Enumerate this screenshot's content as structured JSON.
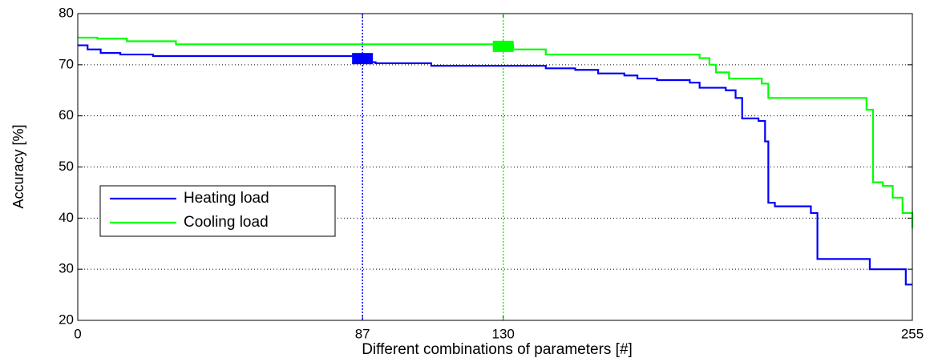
{
  "chart_data": {
    "type": "line",
    "x_label": "Different combinations of parameters [#]",
    "y_label": "Accuracy [%]",
    "xlim": [
      0,
      255
    ],
    "ylim": [
      20,
      80
    ],
    "xticks": [
      0,
      87,
      130,
      255
    ],
    "yticks": [
      20,
      30,
      40,
      50,
      60,
      70,
      80
    ],
    "grid": true,
    "legend": "middle-left",
    "series": [
      {
        "name": "Heating load",
        "color": "#0000ff",
        "x": [
          0,
          3,
          3,
          7,
          7,
          13,
          13,
          23,
          23,
          88,
          88,
          91,
          91,
          108,
          108,
          143,
          143,
          152,
          152,
          159,
          159,
          167,
          167,
          171,
          171,
          177,
          177,
          187,
          187,
          190,
          190,
          198,
          198,
          201,
          201,
          203,
          203,
          208,
          208,
          210,
          210,
          211,
          211,
          213,
          213,
          224,
          224,
          226,
          226,
          242,
          242,
          253,
          253,
          255
        ],
        "values": [
          73.8,
          73.8,
          73,
          73,
          72.3,
          72.3,
          72,
          72,
          71.7,
          71.7,
          70.5,
          70.5,
          70.3,
          70.3,
          69.8,
          69.8,
          69.3,
          69.3,
          69,
          69,
          68.3,
          68.3,
          67.9,
          67.9,
          67.3,
          67.3,
          67,
          67,
          66.5,
          66.5,
          65.5,
          65.5,
          65,
          65,
          63.5,
          63.5,
          59.5,
          59.5,
          59,
          59,
          55,
          55,
          43,
          43,
          42.3,
          42.3,
          41,
          41,
          32,
          32,
          30,
          30,
          27,
          27
        ]
      },
      {
        "name": "Cooling load",
        "color": "#00ff00",
        "x": [
          0,
          6,
          6,
          15,
          15,
          30,
          30,
          133,
          133,
          143,
          143,
          190,
          190,
          193,
          193,
          195,
          195,
          199,
          199,
          209,
          209,
          211,
          211,
          241,
          241,
          243,
          243,
          246,
          246,
          249,
          249,
          252,
          252,
          255,
          255
        ],
        "values": [
          75.3,
          75.3,
          75.1,
          75.1,
          74.6,
          74.6,
          74,
          74,
          73,
          73,
          72,
          72,
          71.3,
          71.3,
          70,
          70,
          68.5,
          68.5,
          67.3,
          67.3,
          66.3,
          66.3,
          63.5,
          63.5,
          61.2,
          61.2,
          47,
          47,
          46.3,
          46.3,
          44,
          44,
          41,
          41,
          38
        ]
      }
    ],
    "markers": [
      {
        "x": 87,
        "y": 71.2,
        "color": "#0000ff"
      },
      {
        "x": 130,
        "y": 73.6,
        "color": "#00ff00"
      }
    ]
  }
}
